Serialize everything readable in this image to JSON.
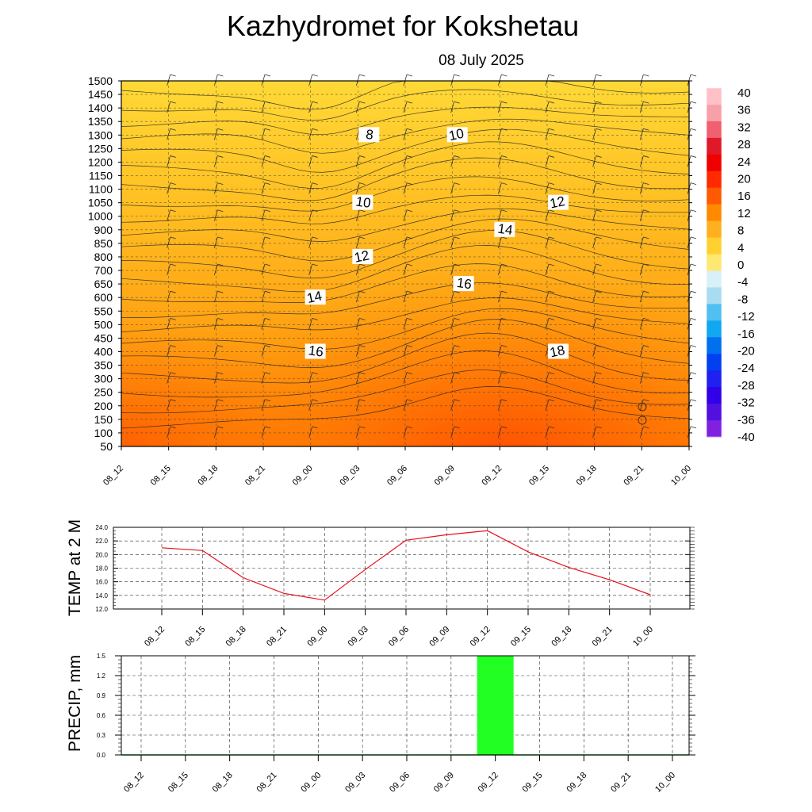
{
  "title": "Kazhydromet  for Kokshetau",
  "subtitle": "08 July 2025",
  "colors": {
    "temp_line": "#e8101a",
    "precip_bar": "#22ff22",
    "contour": "#222222",
    "grid": "#333333"
  },
  "chart_data": [
    {
      "type": "heatmap",
      "name": "cross-section",
      "time_labels": [
        "08_12",
        "08_15",
        "08_18",
        "08_21",
        "09_00",
        "09_03",
        "09_06",
        "09_09",
        "09_12",
        "09_15",
        "09_18",
        "09_21",
        "10_00"
      ],
      "y_ticks": [
        1500,
        1450,
        1400,
        1350,
        1300,
        1250,
        1200,
        1150,
        1100,
        1050,
        1000,
        900,
        850,
        800,
        700,
        650,
        600,
        550,
        500,
        450,
        400,
        350,
        300,
        250,
        200,
        150,
        100,
        50
      ],
      "ylim": [
        50,
        1500
      ],
      "grid": true,
      "contour_labels": [
        {
          "text": "8",
          "time": "09_03",
          "level": 1300
        },
        {
          "text": "10",
          "time": "09_09",
          "level": 1300
        },
        {
          "text": "10",
          "time": "09_03",
          "level": 1050
        },
        {
          "text": "12",
          "time": "09_15",
          "level": 1050
        },
        {
          "text": "14",
          "time": "09_12",
          "level": 900
        },
        {
          "text": "12",
          "time": "09_03",
          "level": 800
        },
        {
          "text": "16",
          "time": "09_09",
          "level": 650
        },
        {
          "text": "14",
          "time": "09_00",
          "level": 600
        },
        {
          "text": "16",
          "time": "09_00",
          "level": 400
        },
        {
          "text": "18",
          "time": "09_15",
          "level": 400
        }
      ],
      "colorbar": {
        "labels": [
          "40",
          "36",
          "32",
          "28",
          "24",
          "20",
          "16",
          "12",
          "8",
          "4",
          "0",
          "-4",
          "-8",
          "-12",
          "-16",
          "-20",
          "-24",
          "-28",
          "-32",
          "-36",
          "-40"
        ],
        "colors": [
          "#ffc0c8",
          "#f8a0a8",
          "#f06070",
          "#e01828",
          "#f00000",
          "#ff2a00",
          "#ff5a00",
          "#ff8a00",
          "#ffb020",
          "#ffd030",
          "#ffe870",
          "#d8f0f8",
          "#a8dcf0",
          "#50c0f0",
          "#10a8f0",
          "#0070f0",
          "#0040f0",
          "#2020f0",
          "#3000e8",
          "#5010e0",
          "#8020e0"
        ]
      }
    },
    {
      "type": "line",
      "name": "temp",
      "ylabel": "TEMP at 2 M",
      "ylim": [
        12.0,
        24.0
      ],
      "y_ticks": [
        "24.0",
        "22.0",
        "20.0",
        "18.0",
        "16.0",
        "14.0",
        "12.0"
      ],
      "x": [
        "08_12",
        "08_15",
        "08_18",
        "08_21",
        "09_00",
        "09_03",
        "09_06",
        "09_09",
        "09_12",
        "09_15",
        "09_18",
        "09_21",
        "10_00"
      ],
      "values": [
        21.0,
        20.6,
        16.6,
        14.3,
        13.3,
        17.8,
        22.1,
        22.9,
        23.5,
        20.4,
        18.1,
        16.3,
        14.1
      ],
      "grid": true
    },
    {
      "type": "bar",
      "name": "precip",
      "ylabel": "PRECIP, mm",
      "ylim": [
        0,
        1.5
      ],
      "y_ticks": [
        "1.5",
        "1.2",
        "0.9",
        "0.6",
        "0.3",
        "0.0"
      ],
      "categories": [
        "08_12",
        "08_15",
        "08_18",
        "08_21",
        "09_00",
        "09_03",
        "09_06",
        "09_09",
        "09_12",
        "09_15",
        "09_18",
        "09_21",
        "10_00"
      ],
      "values": [
        0,
        0,
        0,
        0,
        0,
        0,
        0,
        0,
        1.5,
        0,
        0,
        0,
        0
      ],
      "grid": true
    }
  ]
}
